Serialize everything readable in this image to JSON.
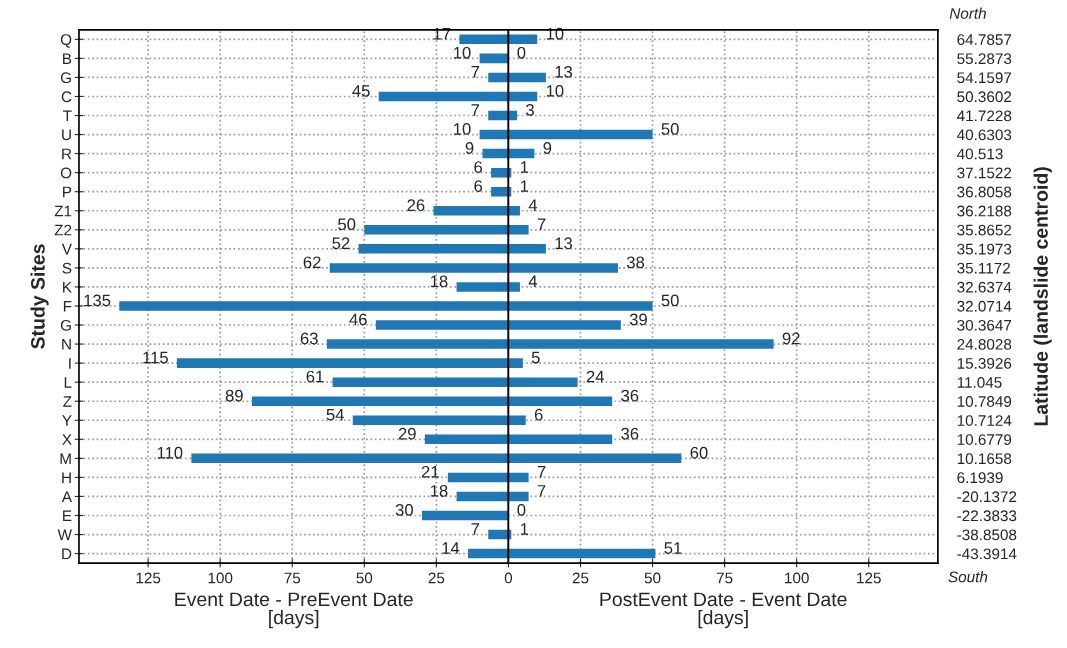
{
  "chart_data": [
    {
      "type": "bar",
      "orientation": "horizontal",
      "xlabel": "Event Date - PreEvent Date\n[days]",
      "ylabel": "Study Sites",
      "categories": [
        "Q",
        "B",
        "G",
        "C",
        "T",
        "U",
        "R",
        "O",
        "P",
        "Z1",
        "Z2",
        "V",
        "S",
        "K",
        "F",
        "G",
        "N",
        "I",
        "L",
        "Z",
        "Y",
        "X",
        "M",
        "H",
        "A",
        "E",
        "W",
        "D"
      ],
      "values": [
        17,
        10,
        7,
        45,
        7,
        10,
        9,
        6,
        6,
        26,
        50,
        52,
        62,
        18,
        135,
        46,
        63,
        115,
        61,
        89,
        54,
        29,
        110,
        21,
        18,
        30,
        7,
        14
      ],
      "color": "#1f77b4",
      "xlim": [
        149,
        0
      ],
      "xticks": [
        125,
        100,
        75,
        50,
        25,
        0
      ],
      "grid": true,
      "data_labels": true
    },
    {
      "type": "bar",
      "orientation": "horizontal",
      "xlabel": "PostEvent Date - Event Date\n[days]",
      "ylabel": "Latitude (landslide centroid)",
      "categories": [
        "64.7857",
        "55.2873",
        "54.1597",
        "50.3602",
        "41.7228",
        "40.6303",
        "40.513",
        "37.1522",
        "36.8058",
        "36.2188",
        "35.8652",
        "35.1973",
        "35.1172",
        "32.6374",
        "32.0714",
        "30.3647",
        "24.8028",
        "15.3926",
        "11.045",
        "10.7849",
        "10.7124",
        "10.6779",
        "10.1658",
        "6.1939",
        "-20.1372",
        "-22.3833",
        "-38.8508",
        "-43.3914"
      ],
      "values": [
        10,
        0,
        13,
        10,
        3,
        50,
        9,
        1,
        1,
        4,
        7,
        13,
        38,
        4,
        50,
        39,
        92,
        5,
        24,
        36,
        6,
        36,
        60,
        7,
        7,
        0,
        1,
        51
      ],
      "color": "#1f77b4",
      "xlim": [
        0,
        149
      ],
      "xticks": [
        25,
        50,
        75,
        100,
        125
      ],
      "grid": true,
      "data_labels": true,
      "annotations": [
        "North",
        "South"
      ]
    }
  ]
}
